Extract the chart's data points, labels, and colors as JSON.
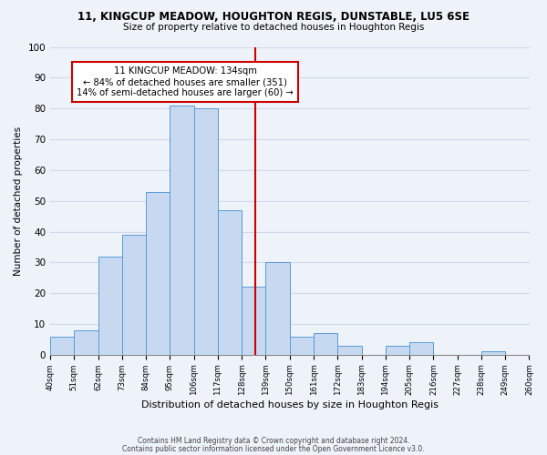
{
  "title_line1": "11, KINGCUP MEADOW, HOUGHTON REGIS, DUNSTABLE, LU5 6SE",
  "title_line2": "Size of property relative to detached houses in Houghton Regis",
  "xlabel": "Distribution of detached houses by size in Houghton Regis",
  "ylabel": "Number of detached properties",
  "bin_edges": [
    40,
    51,
    62,
    73,
    84,
    95,
    106,
    117,
    128,
    139,
    150,
    161,
    172,
    183,
    194,
    205,
    216,
    227,
    238,
    249,
    260
  ],
  "bar_heights": [
    6,
    8,
    32,
    39,
    53,
    81,
    80,
    47,
    22,
    30,
    6,
    7,
    3,
    0,
    3,
    4,
    0,
    0,
    1,
    0
  ],
  "bar_color": "#c6d9f0",
  "bar_edge_color": "#5b9bd5",
  "ref_line_x": 134,
  "annotation_title": "11 KINGCUP MEADOW: 134sqm",
  "annotation_line1": "← 84% of detached houses are smaller (351)",
  "annotation_line2": "14% of semi-detached houses are larger (60) →",
  "annotation_box_color": "#ffffff",
  "annotation_box_edge_color": "#cc0000",
  "ref_line_color": "#cc0000",
  "ylim": [
    0,
    100
  ],
  "yticks": [
    0,
    10,
    20,
    30,
    40,
    50,
    60,
    70,
    80,
    90,
    100
  ],
  "footer_line1": "Contains HM Land Registry data © Crown copyright and database right 2024.",
  "footer_line2": "Contains public sector information licensed under the Open Government Licence v3.0.",
  "grid_color": "#d0daea",
  "background_color": "#eef2f9"
}
